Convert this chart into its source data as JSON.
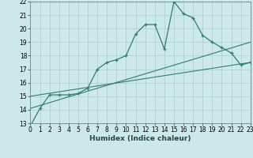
{
  "title": "",
  "xlabel": "Humidex (Indice chaleur)",
  "ylabel": "",
  "bg_color": "#cde8ea",
  "grid_color": "#aacdd0",
  "line_color": "#2e7d74",
  "x_main": [
    0,
    1,
    2,
    3,
    4,
    5,
    6,
    7,
    8,
    9,
    10,
    11,
    12,
    13,
    14,
    15,
    16,
    17,
    18,
    19,
    20,
    21,
    22,
    23
  ],
  "y_main": [
    12.8,
    14.1,
    15.1,
    15.1,
    15.1,
    15.2,
    15.6,
    17.0,
    17.5,
    17.7,
    18.0,
    19.6,
    20.3,
    20.3,
    18.5,
    22.0,
    21.1,
    20.8,
    19.5,
    19.0,
    18.6,
    18.2,
    17.3,
    17.5
  ],
  "x_line2_start": 0,
  "y_line2_start": 14.1,
  "x_line2_end": 23,
  "y_line2_end": 19.0,
  "x_line3_start": 0,
  "y_line3_start": 15.0,
  "x_line3_end": 23,
  "y_line3_end": 17.5,
  "ylim_min": 13,
  "ylim_max": 22,
  "xlim_min": 0,
  "xlim_max": 23,
  "yticks": [
    13,
    14,
    15,
    16,
    17,
    18,
    19,
    20,
    21,
    22
  ],
  "xtick_labels": [
    "0",
    "1",
    "2",
    "3",
    "4",
    "5",
    "6",
    "7",
    "8",
    "9",
    "10",
    "11",
    "12",
    "13",
    "14",
    "15",
    "16",
    "17",
    "18",
    "19",
    "20",
    "21",
    "22",
    "23"
  ]
}
